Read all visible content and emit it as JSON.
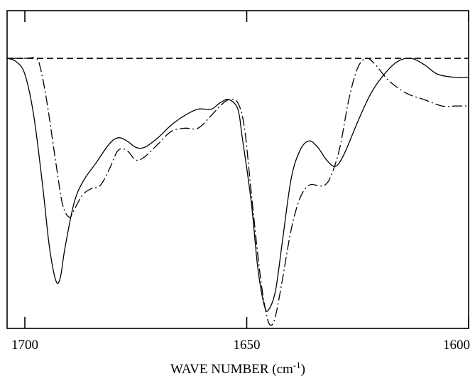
{
  "chart_data": {
    "type": "line",
    "title": "",
    "xlabel": "WAVE NUMBER (cm",
    "xlabel_sup": "-1",
    "xlabel_tail": ")",
    "ylabel": "",
    "xlim": [
      1704,
      1600
    ],
    "ylim": [
      -0.85,
      0.15
    ],
    "x_reversed": true,
    "grid": false,
    "x_ticks": [
      1700,
      1650,
      1600
    ],
    "baseline": {
      "y": 0,
      "style": "dashed"
    },
    "series": [
      {
        "style": "solid",
        "points": [
          [
            1704,
            0.0
          ],
          [
            1702,
            -0.01
          ],
          [
            1700,
            -0.05
          ],
          [
            1698,
            -0.18
          ],
          [
            1696,
            -0.4
          ],
          [
            1694.5,
            -0.59
          ],
          [
            1693,
            -0.7
          ],
          [
            1692,
            -0.69
          ],
          [
            1691,
            -0.6
          ],
          [
            1689,
            -0.46
          ],
          [
            1687,
            -0.39
          ],
          [
            1684,
            -0.33
          ],
          [
            1681,
            -0.27
          ],
          [
            1679,
            -0.25
          ],
          [
            1677,
            -0.26
          ],
          [
            1675,
            -0.28
          ],
          [
            1673,
            -0.28
          ],
          [
            1670,
            -0.25
          ],
          [
            1667,
            -0.21
          ],
          [
            1664,
            -0.18
          ],
          [
            1661,
            -0.16
          ],
          [
            1658,
            -0.16
          ],
          [
            1656,
            -0.14
          ],
          [
            1654,
            -0.13
          ],
          [
            1652,
            -0.16
          ],
          [
            1651,
            -0.25
          ],
          [
            1649,
            -0.45
          ],
          [
            1647.5,
            -0.66
          ],
          [
            1646,
            -0.78
          ],
          [
            1645,
            -0.79
          ],
          [
            1643.5,
            -0.73
          ],
          [
            1642,
            -0.58
          ],
          [
            1640,
            -0.38
          ],
          [
            1638,
            -0.29
          ],
          [
            1636,
            -0.26
          ],
          [
            1634,
            -0.28
          ],
          [
            1632,
            -0.32
          ],
          [
            1630,
            -0.34
          ],
          [
            1628,
            -0.3
          ],
          [
            1625,
            -0.2
          ],
          [
            1622,
            -0.11
          ],
          [
            1619,
            -0.05
          ],
          [
            1616,
            -0.01
          ],
          [
            1613,
            0.0
          ],
          [
            1610,
            -0.02
          ],
          [
            1607,
            -0.05
          ],
          [
            1603,
            -0.06
          ],
          [
            1600,
            -0.06
          ]
        ]
      },
      {
        "style": "dash-dot",
        "points": [
          [
            1704,
            0.0
          ],
          [
            1700,
            0.0
          ],
          [
            1697.5,
            0.0
          ],
          [
            1696.5,
            -0.03
          ],
          [
            1695,
            -0.14
          ],
          [
            1693,
            -0.33
          ],
          [
            1691.5,
            -0.46
          ],
          [
            1690,
            -0.5
          ],
          [
            1689,
            -0.48
          ],
          [
            1687,
            -0.43
          ],
          [
            1685,
            -0.41
          ],
          [
            1683,
            -0.4
          ],
          [
            1681,
            -0.35
          ],
          [
            1679,
            -0.29
          ],
          [
            1677,
            -0.29
          ],
          [
            1675,
            -0.32
          ],
          [
            1673,
            -0.31
          ],
          [
            1670,
            -0.27
          ],
          [
            1667,
            -0.23
          ],
          [
            1664,
            -0.22
          ],
          [
            1661,
            -0.22
          ],
          [
            1658,
            -0.18
          ],
          [
            1656,
            -0.15
          ],
          [
            1654,
            -0.13
          ],
          [
            1652,
            -0.14
          ],
          [
            1650.5,
            -0.22
          ],
          [
            1649,
            -0.42
          ],
          [
            1647,
            -0.68
          ],
          [
            1645.5,
            -0.81
          ],
          [
            1644.5,
            -0.84
          ],
          [
            1643.5,
            -0.81
          ],
          [
            1642,
            -0.7
          ],
          [
            1640,
            -0.54
          ],
          [
            1638,
            -0.44
          ],
          [
            1636,
            -0.4
          ],
          [
            1634,
            -0.4
          ],
          [
            1632.5,
            -0.4
          ],
          [
            1631,
            -0.37
          ],
          [
            1629,
            -0.28
          ],
          [
            1627,
            -0.13
          ],
          [
            1625,
            -0.03
          ],
          [
            1623,
            0.0
          ],
          [
            1621,
            -0.02
          ],
          [
            1618,
            -0.07
          ],
          [
            1614,
            -0.11
          ],
          [
            1610,
            -0.13
          ],
          [
            1606,
            -0.15
          ],
          [
            1603,
            -0.15
          ],
          [
            1600,
            -0.15
          ]
        ]
      }
    ]
  }
}
